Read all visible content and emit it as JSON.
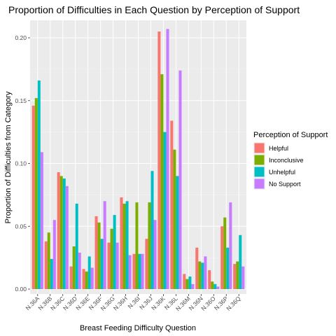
{
  "chart_data": {
    "type": "bar",
    "title": "Proportion of Difficulties in Each Question by Perception of Support",
    "xlabel": "Breast Feeding Difficulty Question",
    "ylabel": "Proportion of Difficulties from Category",
    "ylim": [
      0,
      0.21
    ],
    "yticks": [
      0.0,
      0.05,
      0.1,
      0.15,
      0.2
    ],
    "ytick_labels": [
      "0.00",
      "0.05",
      "0.10",
      "0.15",
      "0.20"
    ],
    "grid": true,
    "legend": {
      "title": "Perception of Support",
      "position": "right"
    },
    "categories": [
      "N.36A",
      "N.36B",
      "N.36C",
      "N.36D",
      "N.36E",
      "N.36F",
      "N.36G",
      "N.36H",
      "N.36I",
      "N.36J",
      "N.36K",
      "N.36L",
      "N.36M",
      "N.36N",
      "N.36O",
      "N.36P",
      "N.36Q"
    ],
    "series": [
      {
        "name": "Helpful",
        "color": "#F8766D",
        "values": [
          0.146,
          0.038,
          0.093,
          0.018,
          0.016,
          0.058,
          0.037,
          0.073,
          0.028,
          0.04,
          0.205,
          0.134,
          0.012,
          0.033,
          0.015,
          0.05,
          0.02
        ]
      },
      {
        "name": "Inconclusive",
        "color": "#7CAE00",
        "values": [
          0.152,
          0.045,
          0.09,
          0.034,
          0.014,
          0.053,
          0.048,
          0.068,
          0.069,
          0.069,
          0.171,
          0.111,
          0.008,
          0.022,
          0.006,
          0.057,
          0.022
        ]
      },
      {
        "name": "Unhelpful",
        "color": "#00BFC4",
        "values": [
          0.166,
          0.024,
          0.088,
          0.068,
          0.026,
          0.04,
          0.059,
          0.07,
          0.028,
          0.094,
          0.125,
          0.09,
          0.01,
          0.021,
          0.004,
          0.033,
          0.043
        ]
      },
      {
        "name": "No Support",
        "color": "#C77CFF",
        "values": [
          0.109,
          0.055,
          0.082,
          0.029,
          0.017,
          0.07,
          0.037,
          0.027,
          0.028,
          0.055,
          0.207,
          0.174,
          0.004,
          0.026,
          0.002,
          0.069,
          0.018
        ]
      }
    ]
  }
}
